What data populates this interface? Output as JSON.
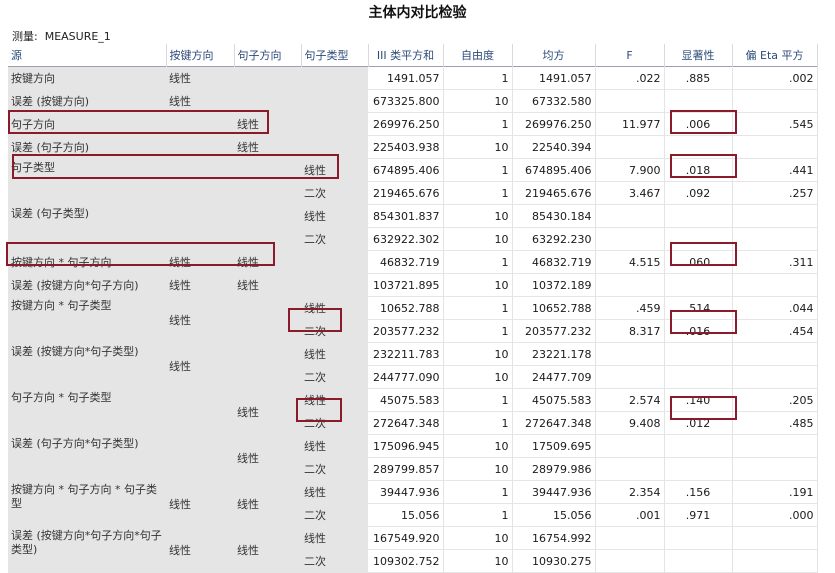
{
  "title": "主体内对比检验",
  "measure": {
    "label": "测量:",
    "value": "MEASURE_1"
  },
  "headers": {
    "source": "源",
    "key_dir": "按键方向",
    "sent_dir": "句子方向",
    "sent_type": "句子类型",
    "ss": "III 类平方和",
    "df": "自由度",
    "ms": "均方",
    "f": "F",
    "sig": "显著性",
    "eta": "偏 Eta 平方"
  },
  "rows": [
    {
      "src": "按键方向",
      "c1": "线性",
      "c2": "",
      "c3": "",
      "ss": "1491.057",
      "df": "1",
      "ms": "1491.057",
      "f": ".022",
      "sig": ".885",
      "eta": ".002"
    },
    {
      "src": "误差 (按键方向)",
      "c1": "线性",
      "c2": "",
      "c3": "",
      "ss": "673325.800",
      "df": "10",
      "ms": "67332.580",
      "f": "",
      "sig": "",
      "eta": ""
    },
    {
      "src": "句子方向",
      "c1": "",
      "c2": "线性",
      "c3": "",
      "ss": "269976.250",
      "df": "1",
      "ms": "269976.250",
      "f": "11.977",
      "sig": ".006",
      "eta": ".545"
    },
    {
      "src": "误差 (句子方向)",
      "c1": "",
      "c2": "线性",
      "c3": "",
      "ss": "225403.938",
      "df": "10",
      "ms": "22540.394",
      "f": "",
      "sig": "",
      "eta": ""
    },
    {
      "src": "句子类型",
      "c1": "",
      "c2": "",
      "c3": "线性",
      "ss": "674895.406",
      "df": "1",
      "ms": "674895.406",
      "f": "7.900",
      "sig": ".018",
      "eta": ".441"
    },
    {
      "src": "",
      "c1": "",
      "c2": "",
      "c3": "二次",
      "ss": "219465.676",
      "df": "1",
      "ms": "219465.676",
      "f": "3.467",
      "sig": ".092",
      "eta": ".257"
    },
    {
      "src": "误差 (句子类型)",
      "c1": "",
      "c2": "",
      "c3": "线性",
      "ss": "854301.837",
      "df": "10",
      "ms": "85430.184",
      "f": "",
      "sig": "",
      "eta": ""
    },
    {
      "src": "",
      "c1": "",
      "c2": "",
      "c3": "二次",
      "ss": "632922.302",
      "df": "10",
      "ms": "63292.230",
      "f": "",
      "sig": "",
      "eta": ""
    },
    {
      "src": "按键方向 * 句子方向",
      "c1": "线性",
      "c2": "线性",
      "c3": "",
      "ss": "46832.719",
      "df": "1",
      "ms": "46832.719",
      "f": "4.515",
      "sig": ".060",
      "eta": ".311"
    },
    {
      "src": "误差 (按键方向*句子方向)",
      "c1": "线性",
      "c2": "线性",
      "c3": "",
      "ss": "103721.895",
      "df": "10",
      "ms": "10372.189",
      "f": "",
      "sig": "",
      "eta": ""
    },
    {
      "src": "按键方向 * 句子类型",
      "c1": "线性",
      "c2": "",
      "c3": "线性",
      "ss": "10652.788",
      "df": "1",
      "ms": "10652.788",
      "f": ".459",
      "sig": ".514",
      "eta": ".044"
    },
    {
      "src": "",
      "c1": "",
      "c2": "",
      "c3": "二次",
      "ss": "203577.232",
      "df": "1",
      "ms": "203577.232",
      "f": "8.317",
      "sig": ".016",
      "eta": ".454"
    },
    {
      "src": "误差 (按键方向*句子类型)",
      "c1": "线性",
      "c2": "",
      "c3": "线性",
      "ss": "232211.783",
      "df": "10",
      "ms": "23221.178",
      "f": "",
      "sig": "",
      "eta": ""
    },
    {
      "src": "",
      "c1": "",
      "c2": "",
      "c3": "二次",
      "ss": "244777.090",
      "df": "10",
      "ms": "24477.709",
      "f": "",
      "sig": "",
      "eta": ""
    },
    {
      "src": "句子方向 * 句子类型",
      "c1": "",
      "c2": "线性",
      "c3": "线性",
      "ss": "45075.583",
      "df": "1",
      "ms": "45075.583",
      "f": "2.574",
      "sig": ".140",
      "eta": ".205"
    },
    {
      "src": "",
      "c1": "",
      "c2": "",
      "c3": "二次",
      "ss": "272647.348",
      "df": "1",
      "ms": "272647.348",
      "f": "9.408",
      "sig": ".012",
      "eta": ".485"
    },
    {
      "src": "误差 (句子方向*句子类型)",
      "c1": "",
      "c2": "线性",
      "c3": "线性",
      "ss": "175096.945",
      "df": "10",
      "ms": "17509.695",
      "f": "",
      "sig": "",
      "eta": ""
    },
    {
      "src": "",
      "c1": "",
      "c2": "",
      "c3": "二次",
      "ss": "289799.857",
      "df": "10",
      "ms": "28979.986",
      "f": "",
      "sig": "",
      "eta": ""
    },
    {
      "src": "按键方向 * 句子方向 * 句子类型",
      "c1": "线性",
      "c2": "线性",
      "c3": "线性",
      "ss": "39447.936",
      "df": "1",
      "ms": "39447.936",
      "f": "2.354",
      "sig": ".156",
      "eta": ".191"
    },
    {
      "src": "",
      "c1": "",
      "c2": "",
      "c3": "二次",
      "ss": "15.056",
      "df": "1",
      "ms": "15.056",
      "f": ".001",
      "sig": ".971",
      "eta": ".000"
    },
    {
      "src": "误差 (按键方向*句子方向*句子类型)",
      "c1": "线性",
      "c2": "线性",
      "c3": "线性",
      "ss": "167549.920",
      "df": "10",
      "ms": "16754.992",
      "f": "",
      "sig": "",
      "eta": ""
    },
    {
      "src": "",
      "c1": "",
      "c2": "",
      "c3": "二次",
      "ss": "109302.752",
      "df": "10",
      "ms": "10930.275",
      "f": "",
      "sig": "",
      "eta": ""
    }
  ],
  "highlight_color": "#8b1a2b",
  "label_bg": "#e5e5e5",
  "header_color": "#2b4a7a"
}
